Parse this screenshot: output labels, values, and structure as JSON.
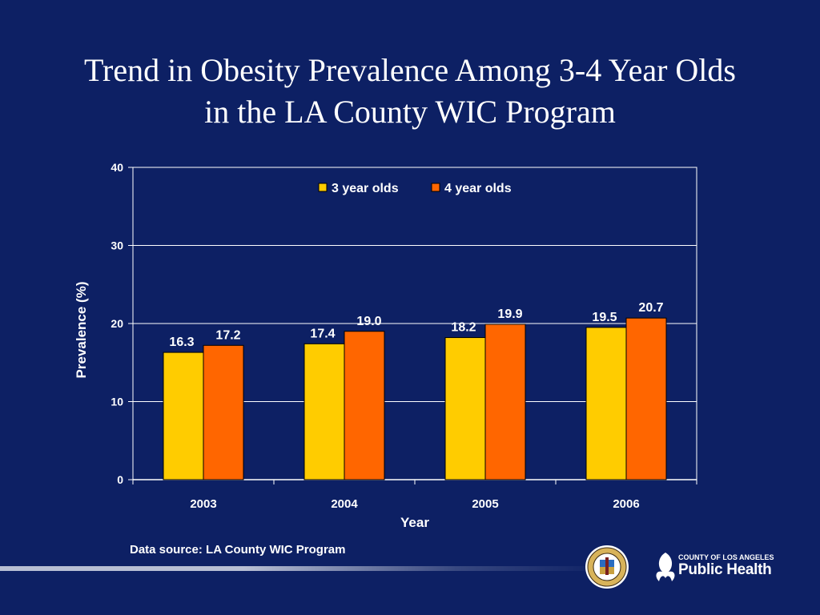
{
  "slide": {
    "title_line1": "Trend in Obesity Prevalence Among 3-4 Year Olds",
    "title_line2": "in the LA County WIC Program",
    "source": "Data source: LA County WIC Program"
  },
  "logos": {
    "seal_icon": "county-seal-icon",
    "public_health": {
      "small": "County of Los Angeles",
      "big": "Public Health"
    }
  },
  "chart_data": {
    "type": "bar",
    "categories": [
      "2003",
      "2004",
      "2005",
      "2006"
    ],
    "series": [
      {
        "name": "3 year olds",
        "values": [
          16.3,
          17.4,
          18.2,
          19.5
        ],
        "labels": [
          "16.3",
          "17.4",
          "18.2",
          "19.5"
        ],
        "color": "#ffcc00"
      },
      {
        "name": "4 year olds",
        "values": [
          17.2,
          19.0,
          19.9,
          20.7
        ],
        "labels": [
          "17.2",
          "19.0",
          "19.9",
          "20.7"
        ],
        "color": "#ff6600"
      }
    ],
    "xlabel": "Year",
    "ylabel": "Prevalence (%)",
    "ylim": [
      0,
      40
    ],
    "yticks": [
      0,
      10,
      20,
      30,
      40
    ],
    "grid": true,
    "legend_position": "top-center",
    "colors": {
      "background": "#0d2064",
      "text": "#ffffff",
      "axis": "#ffffff",
      "grid": "#ffffff"
    }
  }
}
